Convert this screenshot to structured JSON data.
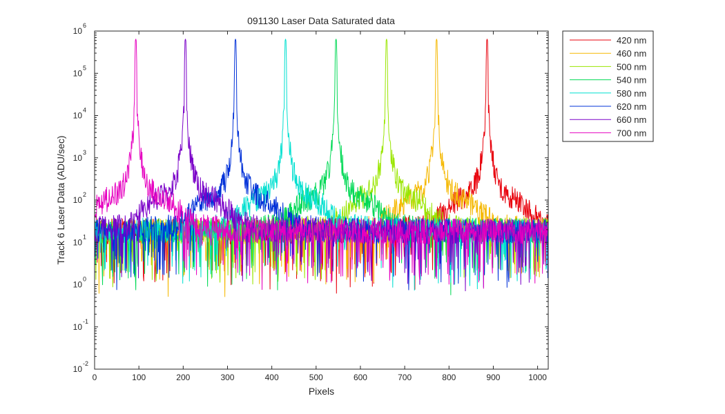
{
  "chart_data": {
    "type": "line",
    "title": "091130 Laser Data  Saturated data",
    "xlabel": "Pixels",
    "ylabel": "Track 6 Laser Data (ADU/sec)",
    "xlim": [
      0,
      1024
    ],
    "ylim": [
      0.01,
      1000000
    ],
    "yscale": "log",
    "grid": false,
    "legend_position": "outside-top-right",
    "x_ticks": [
      "0",
      "100",
      "200",
      "300",
      "400",
      "500",
      "600",
      "700",
      "800",
      "900",
      "1000"
    ],
    "y_ticks": [
      {
        "base": "10",
        "exp": "-2"
      },
      {
        "base": "10",
        "exp": "-1"
      },
      {
        "base": "10",
        "exp": "0"
      },
      {
        "base": "10",
        "exp": "1"
      },
      {
        "base": "10",
        "exp": "2"
      },
      {
        "base": "10",
        "exp": "3"
      },
      {
        "base": "10",
        "exp": "4"
      },
      {
        "base": "10",
        "exp": "5"
      },
      {
        "base": "10",
        "exp": "6"
      }
    ],
    "series": [
      {
        "name": "420 nm",
        "color": "#e8000b",
        "peak_pixel": 886,
        "peak_value": 650000
      },
      {
        "name": "460 nm",
        "color": "#f5b800",
        "peak_pixel": 772,
        "peak_value": 650000
      },
      {
        "name": "500 nm",
        "color": "#9ae600",
        "peak_pixel": 659,
        "peak_value": 650000
      },
      {
        "name": "540 nm",
        "color": "#00d955",
        "peak_pixel": 545,
        "peak_value": 650000
      },
      {
        "name": "580 nm",
        "color": "#00e0d0",
        "peak_pixel": 431,
        "peak_value": 650000
      },
      {
        "name": "620 nm",
        "color": "#0030d8",
        "peak_pixel": 318,
        "peak_value": 650000
      },
      {
        "name": "660 nm",
        "color": "#7a00c8",
        "peak_pixel": 205,
        "peak_value": 650000
      },
      {
        "name": "700 nm",
        "color": "#e600c0",
        "peak_pixel": 93,
        "peak_value": 650000
      }
    ]
  }
}
